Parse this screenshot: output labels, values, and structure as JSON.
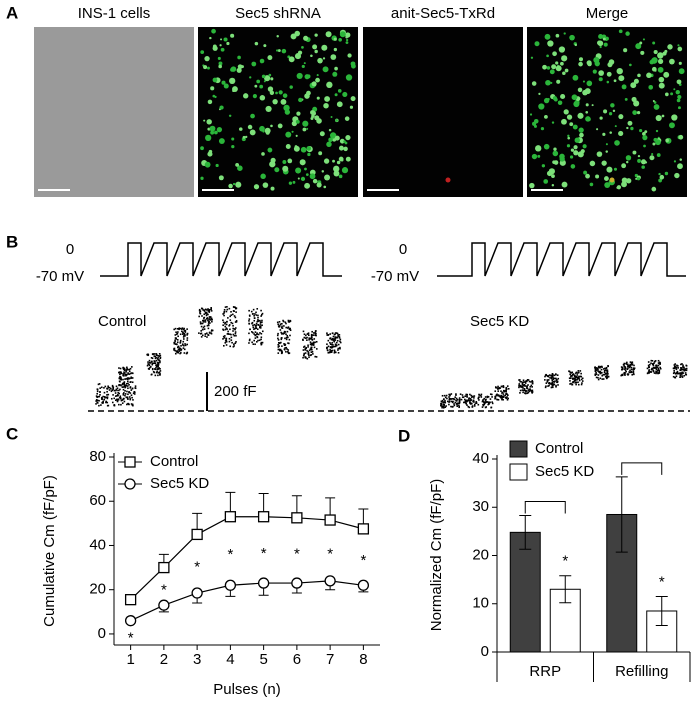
{
  "panel_labels": [
    "A",
    "B",
    "C",
    "D"
  ],
  "panel_a": {
    "titles": [
      "INS-1 cells",
      "Sec5 shRNA",
      "anit-Sec5-TxRd",
      "Merge"
    ]
  },
  "panel_b": {
    "voltage_labels": [
      "0",
      "-70 mV"
    ],
    "traces": [
      "Control",
      "Sec5 KD"
    ],
    "scale_bar": "200 fF"
  },
  "chart_data": [
    {
      "type": "line",
      "xlabel": "Pulses (n)",
      "ylabel": "Cumulative Cm (fF/pF)",
      "x": [
        1,
        2,
        3,
        4,
        5,
        6,
        7,
        8
      ],
      "xlim": [
        0.5,
        8.5
      ],
      "xticks": [
        1,
        2,
        3,
        4,
        5,
        6,
        7,
        8
      ],
      "ylim": [
        -5,
        80
      ],
      "yticks": [
        0,
        20,
        40,
        60,
        80
      ],
      "legend": "upper left",
      "series": [
        {
          "name": "Control",
          "color": "#000000",
          "marker": "square",
          "values": [
            15.5,
            30,
            45,
            53,
            53,
            52.5,
            51.5,
            47.5
          ],
          "errors": [
            1.5,
            6,
            9.5,
            11,
            10.5,
            10,
            10,
            9
          ]
        },
        {
          "name": "Sec5 KD",
          "color": "#000000",
          "marker": "circle",
          "values": [
            6,
            13,
            18.5,
            22,
            23,
            23,
            24,
            22
          ],
          "errors": [
            1,
            3,
            4.5,
            5,
            5.5,
            4.5,
            4,
            3
          ]
        }
      ],
      "annotations": [
        "*",
        "*",
        "*",
        "*",
        "*",
        "*",
        "*",
        "*"
      ]
    },
    {
      "type": "bar",
      "ylabel": "Normalized Cm (fF/pF)",
      "categories": [
        "RRP",
        "Refilling"
      ],
      "ylim": [
        0,
        40
      ],
      "yticks": [
        0,
        10,
        20,
        30,
        40
      ],
      "legend": "upper left",
      "series": [
        {
          "name": "Control",
          "color": "#404040",
          "values": [
            24.8,
            28.5
          ],
          "errors": [
            3.5,
            7.8
          ]
        },
        {
          "name": "Sec5 KD",
          "color": "#ffffff",
          "values": [
            13,
            8.5
          ],
          "errors": [
            2.8,
            3
          ]
        }
      ],
      "annotations": [
        "*",
        "*"
      ]
    }
  ]
}
